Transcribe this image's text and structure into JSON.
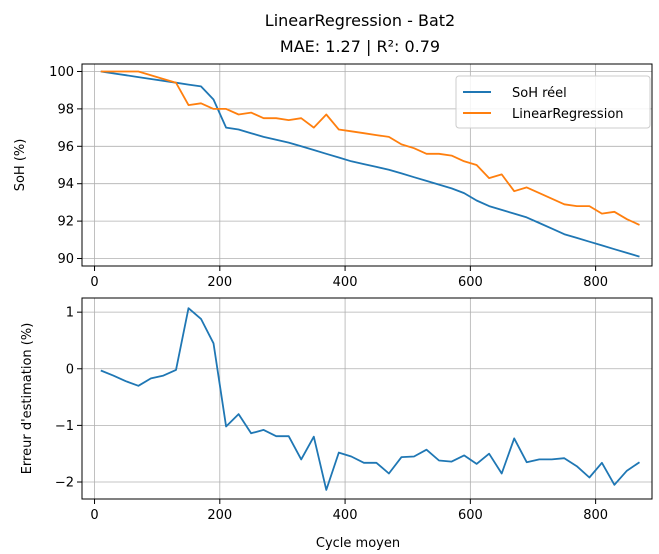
{
  "figure": {
    "title": "LinearRegression - Bat2",
    "subtitle": "MAE: 1.27 | R²: 0.79"
  },
  "colors": {
    "real": "#1f77b4",
    "pred": "#ff7f0e",
    "err": "#1f77b4",
    "grid": "#b0b0b0"
  },
  "chart_data": [
    {
      "type": "line",
      "ylabel": "SoH (%)",
      "xlim": [
        -20,
        890
      ],
      "ylim": [
        89.6,
        100.4
      ],
      "xticks": [
        0,
        200,
        400,
        600,
        800
      ],
      "yticks": [
        90,
        92,
        94,
        96,
        98,
        100
      ],
      "grid": true,
      "legend": "top-right",
      "x": [
        10,
        30,
        50,
        70,
        90,
        110,
        130,
        150,
        170,
        190,
        210,
        230,
        250,
        270,
        290,
        310,
        330,
        350,
        370,
        390,
        410,
        430,
        450,
        470,
        490,
        510,
        530,
        550,
        570,
        590,
        610,
        630,
        650,
        670,
        690,
        710,
        730,
        750,
        770,
        790,
        810,
        830,
        850,
        870
      ],
      "series": [
        {
          "name": "SoH réel",
          "values": [
            100.0,
            99.9,
            99.8,
            99.7,
            99.6,
            99.5,
            99.4,
            99.3,
            99.2,
            98.5,
            97.0,
            96.9,
            96.7,
            96.5,
            96.35,
            96.2,
            96.0,
            95.8,
            95.6,
            95.4,
            95.2,
            95.05,
            94.9,
            94.75,
            94.55,
            94.35,
            94.15,
            93.95,
            93.75,
            93.5,
            93.1,
            92.8,
            92.6,
            92.4,
            92.2,
            91.9,
            91.6,
            91.3,
            91.1,
            90.9,
            90.7,
            90.5,
            90.3,
            90.1
          ]
        },
        {
          "name": "LinearRegression",
          "values": [
            100.0,
            100.0,
            100.0,
            100.0,
            99.8,
            99.6,
            99.4,
            98.2,
            98.3,
            98.0,
            98.0,
            97.7,
            97.8,
            97.5,
            97.5,
            97.4,
            97.5,
            97.0,
            97.7,
            96.9,
            96.8,
            96.7,
            96.6,
            96.5,
            96.1,
            95.9,
            95.6,
            95.6,
            95.5,
            95.2,
            95.0,
            94.3,
            94.5,
            93.6,
            93.8,
            93.5,
            93.2,
            92.9,
            92.8,
            92.8,
            92.4,
            92.5,
            92.1,
            91.8
          ]
        }
      ]
    },
    {
      "type": "line",
      "xlabel": "Cycle moyen",
      "ylabel": "Erreur d'estimation (%)",
      "xlim": [
        -20,
        890
      ],
      "ylim": [
        -2.3,
        1.25
      ],
      "xticks": [
        0,
        200,
        400,
        600,
        800
      ],
      "yticks": [
        -2,
        -1,
        0,
        1
      ],
      "grid": true,
      "x": [
        10,
        30,
        50,
        70,
        90,
        110,
        130,
        150,
        170,
        190,
        210,
        230,
        250,
        270,
        290,
        310,
        330,
        350,
        370,
        390,
        410,
        430,
        450,
        470,
        490,
        510,
        530,
        550,
        570,
        590,
        610,
        630,
        650,
        670,
        690,
        710,
        730,
        750,
        770,
        790,
        810,
        830,
        850,
        870
      ],
      "series": [
        {
          "values": [
            -0.03,
            -0.12,
            -0.22,
            -0.3,
            -0.17,
            -0.12,
            -0.02,
            1.07,
            0.88,
            0.45,
            -1.02,
            -0.8,
            -1.14,
            -1.08,
            -1.19,
            -1.19,
            -1.6,
            -1.2,
            -2.14,
            -1.48,
            -1.55,
            -1.66,
            -1.66,
            -1.85,
            -1.56,
            -1.55,
            -1.43,
            -1.62,
            -1.64,
            -1.53,
            -1.68,
            -1.5,
            -1.85,
            -1.23,
            -1.65,
            -1.6,
            -1.6,
            -1.58,
            -1.72,
            -1.92,
            -1.66,
            -2.05,
            -1.8,
            -1.65
          ]
        }
      ]
    }
  ]
}
